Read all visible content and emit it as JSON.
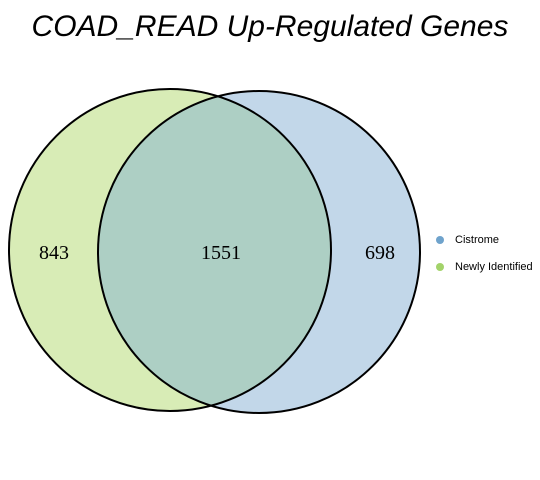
{
  "title": "COAD_READ Up-Regulated Genes",
  "sets": [
    {
      "name": "Newly Identified",
      "color": "#a3d36a",
      "fill": "#d8ecb6"
    },
    {
      "name": "Cistrome",
      "color": "#6fa3cc",
      "fill": "#c2d7e9"
    }
  ],
  "overlap_fill": "#adcfc4",
  "counts": {
    "newly_only": "843",
    "both": "1551",
    "cistrome_only": "698"
  },
  "legend": [
    {
      "label": "Cistrome",
      "color": "#6fa3cc"
    },
    {
      "label": "Newly Identified",
      "color": "#a3d36a"
    }
  ]
}
